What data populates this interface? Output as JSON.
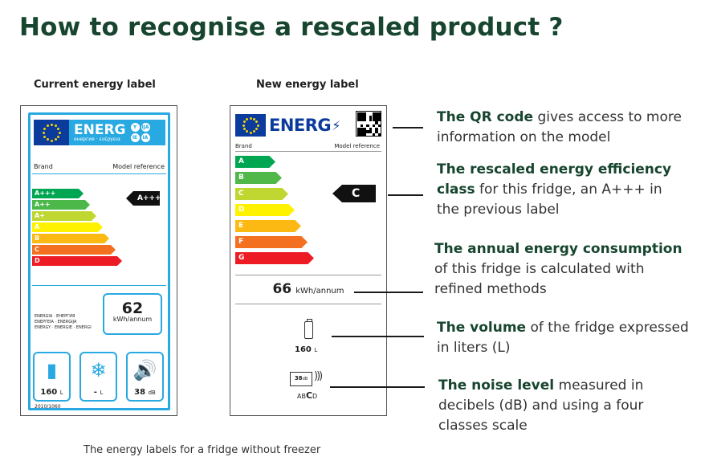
{
  "title": "How to recognise a rescaled product ?",
  "current_label": {
    "heading": "Current energy label",
    "energ_word": "ENERG",
    "energ_sub": "енергия · ενέργεια",
    "circle_letters": [
      "Y",
      "IJA",
      "IE",
      "IA"
    ],
    "brand": "Brand",
    "model_reference": "Model reference",
    "classes": [
      "A+++",
      "A++",
      "A+",
      "A",
      "B",
      "C",
      "D"
    ],
    "class_colors": [
      "#00a651",
      "#4cb849",
      "#bfd730",
      "#fff200",
      "#fdb913",
      "#f37021",
      "#ed1c24"
    ],
    "badge": "A+++",
    "consumption_value": "62",
    "consumption_unit": "kWh/annum",
    "languages": [
      "ENERGIA · ЕНЕРГИЯ",
      "ΕΝΕΡΓΕΙΑ · ENERGIJA",
      "ENERGY · ENERGIE · ENERGI"
    ],
    "volume": "160",
    "volume_unit": "L",
    "freezer": "-",
    "freezer_unit": "L",
    "noise": "38",
    "noise_unit": "dB",
    "regulation": "2010/1060"
  },
  "new_label": {
    "heading": "New energy label",
    "energ_word": "ENERG",
    "brand": "Brand",
    "model_reference": "Model reference",
    "classes": [
      "A",
      "B",
      "C",
      "D",
      "E",
      "F",
      "G"
    ],
    "class_colors": [
      "#00a651",
      "#50b848",
      "#bfd730",
      "#fff200",
      "#fdb913",
      "#f37021",
      "#ed1c24"
    ],
    "badge": "C",
    "consumption_value": "66",
    "consumption_unit": "kWh/annum",
    "volume": "160",
    "volume_unit": "L",
    "noise_db": "38",
    "noise_db_unit": "dB",
    "noise_scale_pre": "AB",
    "noise_scale_mid": "C",
    "noise_scale_post": "D"
  },
  "descriptions": {
    "qr": {
      "bold": "The QR code",
      "text": " gives access to more information on the model"
    },
    "efficiency": {
      "bold": "The rescaled energy efficiency class",
      "text": " for this fridge, an A+++ in the previous label"
    },
    "consumption": {
      "bold": "The annual energy consumption",
      "text": " of this fridge is calculated with refined methods"
    },
    "volume": {
      "bold": "The volume",
      "text": " of the fridge expressed in liters (L)"
    },
    "noise": {
      "bold": "The noise level",
      "text": " measured in decibels (dB) and using a four classes scale"
    }
  },
  "caption": "The energy labels for a fridge without freezer"
}
